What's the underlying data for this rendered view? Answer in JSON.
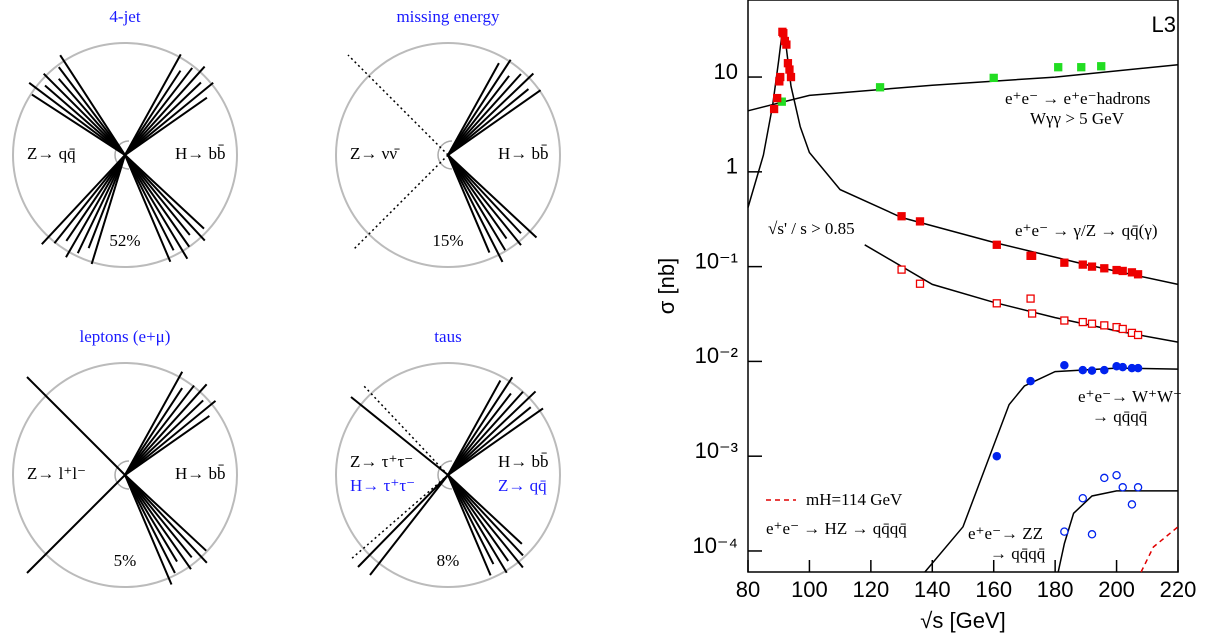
{
  "diagrams": [
    {
      "title": "4-jet",
      "left": [
        "Z→ qq̄"
      ],
      "right": [
        "H→ bb̄"
      ],
      "fraction": "52%"
    },
    {
      "title": "missing energy",
      "left": [
        "Z→ νν̄"
      ],
      "right": [
        "H→ bb̄"
      ],
      "fraction": "15%"
    },
    {
      "title": "leptons (e+μ)",
      "left": [
        "Z→ l⁺l⁻"
      ],
      "right": [
        "H→ bb̄"
      ],
      "fraction": "5%"
    },
    {
      "title": "taus",
      "left": [
        "Z→ τ⁺τ⁻",
        "H→ τ⁺τ⁻"
      ],
      "right": [
        "H→ bb̄",
        "Z→ qq̄"
      ],
      "fraction": "8%"
    }
  ],
  "chart_data": {
    "type": "scatter",
    "x_label": "√s [GeV]",
    "y_label": "σ [nb]",
    "log_y": true,
    "xlim": [
      80,
      220
    ],
    "xticks": [
      80,
      100,
      120,
      140,
      160,
      180,
      200,
      220
    ],
    "ylim": [
      6e-05,
      65
    ],
    "yticks": [
      {
        "value": 0.0001,
        "label": "10⁻⁴"
      },
      {
        "value": 0.001,
        "label": "10⁻³"
      },
      {
        "value": 0.01,
        "label": "10⁻²"
      },
      {
        "value": 0.1,
        "label": "10⁻¹"
      },
      1,
      10
    ],
    "annotations": [
      "L3",
      "e⁺e⁻ → e⁺e⁻hadrons",
      "Wγγ > 5 GeV",
      "e⁺e⁻ → γ/Z → qq̄(γ)",
      "√s' / s > 0.85",
      "e⁺e⁻→ W⁺W⁻",
      "→ qq̄qq̄",
      "e⁺e⁻→ ZZ",
      "→ qq̄qq̄",
      "e⁺e⁻ → HZ → qq̄qq̄"
    ],
    "series": [
      {
        "style": "line",
        "color": "#000000",
        "x": [
          80,
          100,
          140,
          180,
          220
        ],
        "values": [
          4.4,
          6.4,
          8.2,
          10,
          13.5
        ]
      },
      {
        "style": "line",
        "color": "#000000",
        "x": [
          80,
          85,
          88,
          90,
          91.2,
          92.5,
          94,
          97,
          100,
          110,
          130,
          160,
          190,
          220
        ],
        "values": [
          0.42,
          1.5,
          5,
          15,
          31,
          20,
          8,
          3,
          1.6,
          0.65,
          0.33,
          0.18,
          0.105,
          0.065
        ]
      },
      {
        "style": "line",
        "color": "#000000",
        "x": [
          118,
          140,
          160,
          180,
          200,
          220
        ],
        "values": [
          0.17,
          0.065,
          0.042,
          0.029,
          0.021,
          0.016
        ]
      },
      {
        "style": "line",
        "color": "#000000",
        "x": [
          137.6,
          150,
          160,
          165,
          170,
          180,
          200,
          220
        ],
        "values": [
          6e-05,
          0.00018,
          0.0013,
          0.0035,
          0.0055,
          0.0078,
          0.0085,
          0.0083
        ]
      },
      {
        "style": "line",
        "color": "#000000",
        "x": [
          181,
          183,
          186,
          192,
          200,
          220
        ],
        "values": [
          6e-05,
          0.00012,
          0.00025,
          0.00038,
          0.00043,
          0.00043
        ]
      },
      {
        "style": "line",
        "dashed": true,
        "name": "mH=114 GeV",
        "color": "#e00000",
        "x": [
          208,
          212,
          220
        ],
        "values": [
          6e-05,
          0.00011,
          0.00018
        ]
      },
      {
        "style": "marker",
        "marker": "square",
        "filled": true,
        "color": "#22dd22",
        "x": [
          91,
          123,
          160,
          181,
          188.5,
          195
        ],
        "values": [
          5.5,
          7.8,
          9.8,
          12.7,
          12.7,
          13
        ]
      },
      {
        "style": "marker",
        "marker": "square",
        "filled": true,
        "color": "#ee0000",
        "x": [
          88.5,
          89.5,
          90.2,
          90.5,
          91.2,
          91.5,
          92,
          92.5,
          93,
          93.5,
          94,
          130,
          136,
          161,
          172,
          172.5,
          183,
          189,
          192,
          196,
          200,
          202,
          205,
          207
        ],
        "values": [
          4.6,
          6,
          9,
          10,
          30,
          29,
          24,
          22,
          14,
          12,
          10,
          0.34,
          0.3,
          0.17,
          0.13,
          0.13,
          0.11,
          0.105,
          0.1,
          0.096,
          0.092,
          0.09,
          0.087,
          0.083
        ]
      },
      {
        "style": "marker",
        "marker": "square",
        "filled": false,
        "color": "#ee0000",
        "x": [
          130,
          136,
          161,
          172,
          172.5,
          183,
          189,
          192,
          196,
          200,
          202,
          205,
          207
        ],
        "values": [
          0.093,
          0.066,
          0.041,
          0.046,
          0.032,
          0.027,
          0.026,
          0.025,
          0.024,
          0.023,
          0.022,
          0.02,
          0.019
        ]
      },
      {
        "style": "marker",
        "marker": "circle",
        "filled": true,
        "color": "#0022ee",
        "x": [
          161,
          172,
          183,
          189,
          192,
          196,
          200,
          202,
          205,
          207
        ],
        "values": [
          0.001,
          0.0062,
          0.0091,
          0.0081,
          0.008,
          0.0081,
          0.0089,
          0.0087,
          0.0085,
          0.0085
        ]
      },
      {
        "style": "marker",
        "marker": "circle",
        "filled": false,
        "color": "#0022ee",
        "x": [
          183,
          189,
          192,
          196,
          200,
          202,
          205,
          207
        ],
        "values": [
          0.00016,
          0.00036,
          0.00015,
          0.00059,
          0.00063,
          0.00047,
          0.00031,
          0.00047
        ]
      }
    ]
  }
}
